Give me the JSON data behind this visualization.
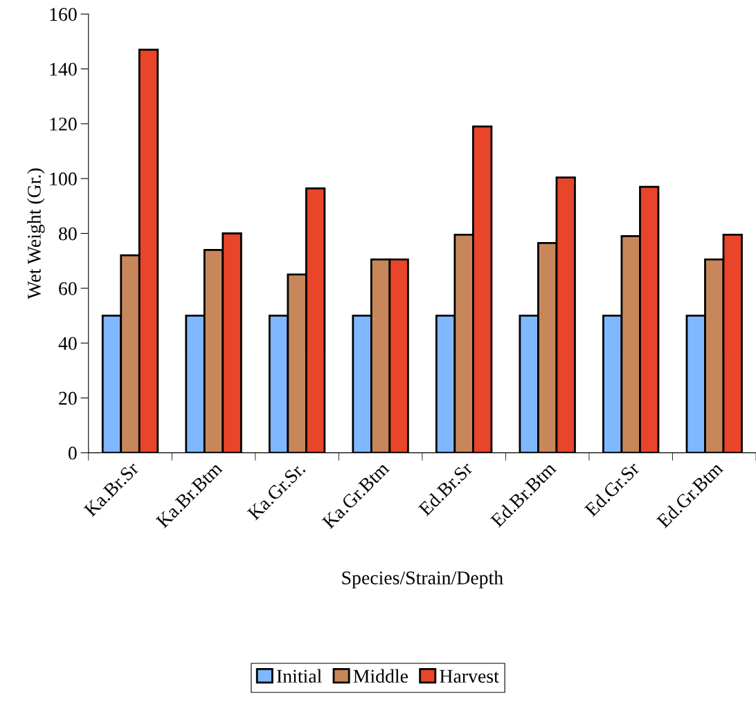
{
  "chart_data": {
    "type": "bar",
    "xlabel": "Species/Strain/Depth",
    "ylabel": "Wet Weight (Gr.)",
    "categories": [
      "Ka.Br.Sr",
      "Ka.Br.Btm",
      "Ka.Gr.Sr.",
      "Ka.Gr.Btm",
      "Ed.Br.Sr",
      "Ed.Br.Btm",
      "Ed.Gr.Sr",
      "Ed.Gr.Btm"
    ],
    "series": [
      {
        "name": "Initial",
        "color": "#7fb8ff",
        "values": [
          50,
          50,
          50,
          50,
          50,
          50,
          50,
          50
        ]
      },
      {
        "name": "Middle",
        "color": "#c8875a",
        "values": [
          72,
          74,
          65,
          70.5,
          79.5,
          76.5,
          79,
          70.5
        ]
      },
      {
        "name": "Harvest",
        "color": "#e8452a",
        "values": [
          147,
          80,
          96.4,
          70.5,
          119,
          100.4,
          97,
          79.5
        ]
      }
    ],
    "ylim": [
      0,
      160
    ],
    "yticks": [
      0,
      20,
      40,
      60,
      80,
      100,
      120,
      140,
      160
    ],
    "grid": false,
    "legend": "bottom"
  }
}
